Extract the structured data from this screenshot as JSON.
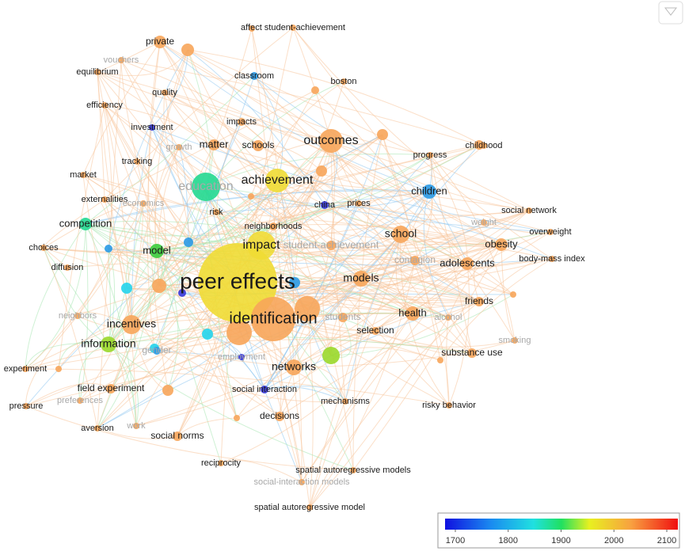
{
  "nodes": [
    {
      "label": "peer effects"
    },
    {
      "label": "identification"
    },
    {
      "label": "achievement"
    },
    {
      "label": "outcomes"
    },
    {
      "label": "education"
    },
    {
      "label": "impact"
    },
    {
      "label": "children"
    },
    {
      "label": "competition"
    },
    {
      "label": "model"
    },
    {
      "label": "school"
    },
    {
      "label": "obesity"
    },
    {
      "label": "adolescents"
    },
    {
      "label": "models"
    },
    {
      "label": "incentives"
    },
    {
      "label": "information"
    },
    {
      "label": "health"
    },
    {
      "label": "networks"
    },
    {
      "label": "friends"
    },
    {
      "label": "substance use"
    },
    {
      "label": "field experiment"
    },
    {
      "label": "decisions"
    },
    {
      "label": "social norms"
    },
    {
      "label": "social interaction"
    },
    {
      "label": "mechanisms"
    },
    {
      "label": "risky behavior"
    },
    {
      "label": "private"
    },
    {
      "label": "affect student-achievement"
    },
    {
      "label": "vouchers"
    },
    {
      "label": "equilibrium"
    },
    {
      "label": "classroom"
    },
    {
      "label": "boston"
    },
    {
      "label": "quality"
    },
    {
      "label": "efficiency"
    },
    {
      "label": "investment"
    },
    {
      "label": "impacts"
    },
    {
      "label": "matter"
    },
    {
      "label": "schools"
    },
    {
      "label": "progress"
    },
    {
      "label": "childhood"
    },
    {
      "label": "growth"
    },
    {
      "label": "tracking"
    },
    {
      "label": "market"
    },
    {
      "label": "externalities"
    },
    {
      "label": "economics"
    },
    {
      "label": "risk"
    },
    {
      "label": "china"
    },
    {
      "label": "prices"
    },
    {
      "label": "neighborhoods"
    },
    {
      "label": "social network"
    },
    {
      "label": "weight"
    },
    {
      "label": "overweight"
    },
    {
      "label": "student-achievement"
    },
    {
      "label": "choices"
    },
    {
      "label": "diffusion"
    },
    {
      "label": "contagion"
    },
    {
      "label": "body-mass index"
    },
    {
      "label": "neighbors"
    },
    {
      "label": "students"
    },
    {
      "label": "alcohol"
    },
    {
      "label": "selection"
    },
    {
      "label": "smoking"
    },
    {
      "label": "gender"
    },
    {
      "label": "employment"
    },
    {
      "label": "experiment"
    },
    {
      "label": "preferences"
    },
    {
      "label": "pressure"
    },
    {
      "label": "aversion"
    },
    {
      "label": "work"
    },
    {
      "label": "reciprocity"
    },
    {
      "label": "spatial autoregressive models"
    },
    {
      "label": "social-interaction models"
    },
    {
      "label": "spatial autoregressive model"
    }
  ],
  "legend": {
    "ticks": [
      1700,
      1800,
      1900,
      2000,
      2100
    ]
  }
}
